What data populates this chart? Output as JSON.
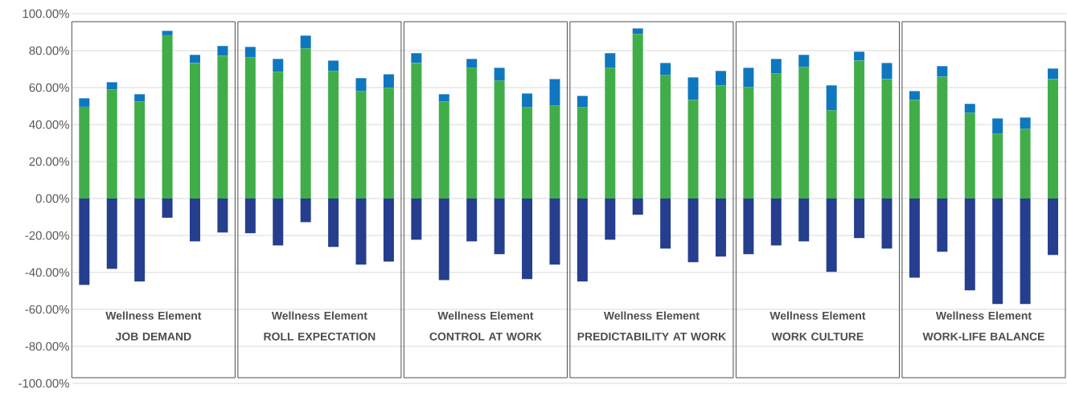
{
  "chart_data": {
    "type": "bar",
    "stacked": true,
    "grid": "y",
    "categories": [
      null,
      null,
      null,
      null,
      null,
      null,
      null,
      null,
      null,
      null,
      null,
      null,
      null,
      null,
      null,
      null,
      null,
      null,
      null,
      null,
      null,
      null,
      null,
      null,
      null,
      null,
      null,
      null,
      null,
      null,
      null,
      null,
      null,
      null,
      null,
      null
    ],
    "series": [
      {
        "color": "#41ad49",
        "values": [
          49.6,
          59.0,
          52.5,
          88.3,
          73.3,
          77.2,
          76.4,
          68.6,
          81.2,
          69.0,
          58.1,
          59.9,
          73.3,
          52.5,
          70.7,
          63.8,
          49.4,
          50.3,
          49.4,
          70.7,
          89.0,
          66.8,
          53.3,
          61.2,
          60.3,
          67.7,
          71.2,
          47.7,
          74.6,
          64.6,
          53.3,
          65.9,
          46.4,
          35.1,
          37.7,
          64.6
        ]
      },
      {
        "color": "#0f77bf",
        "values": [
          4.6,
          3.9,
          3.9,
          2.4,
          4.4,
          5.3,
          5.6,
          6.9,
          6.9,
          5.6,
          7.0,
          7.3,
          5.3,
          3.9,
          4.8,
          6.9,
          7.4,
          14.3,
          6.1,
          7.9,
          3.0,
          6.5,
          12.2,
          7.8,
          10.4,
          7.8,
          6.5,
          13.5,
          4.8,
          8.7,
          4.8,
          5.7,
          4.8,
          8.2,
          6.1,
          5.7
        ]
      },
      {
        "color": "#253e8e",
        "values": [
          -46.7,
          -38.0,
          -44.9,
          -10.4,
          -23.2,
          -18.4,
          -18.8,
          -25.4,
          -12.8,
          -26.2,
          -35.8,
          -34.1,
          -22.3,
          -44.1,
          -23.2,
          -30.1,
          -43.6,
          -35.8,
          -44.9,
          -22.3,
          -8.8,
          -27.1,
          -34.5,
          -31.4,
          -30.1,
          -25.4,
          -23.2,
          -39.7,
          -21.4,
          -27.1,
          -42.8,
          -28.8,
          -49.7,
          -57.1,
          -57.1,
          -30.6
        ]
      }
    ],
    "ylim": [
      -100,
      100
    ],
    "yticks": [
      {
        "value": -100,
        "label": "-100.00%"
      },
      {
        "value": -80,
        "label": "-80.00%"
      },
      {
        "value": -60,
        "label": "-60.00%"
      },
      {
        "value": -40,
        "label": "-40.00%"
      },
      {
        "value": -20,
        "label": "-20.00%"
      },
      {
        "value": 0,
        "label": "0.00%"
      },
      {
        "value": 20,
        "label": "20.00%"
      },
      {
        "value": 40,
        "label": "40.00%"
      },
      {
        "value": 60,
        "label": "60.00%"
      },
      {
        "value": 80,
        "label": "80.00%"
      },
      {
        "value": 100,
        "label": "100.00%"
      }
    ],
    "annotations": [
      "Wellness Element",
      "JOB DEMAND",
      "Wellness Element",
      "ROLL EXPECTATION",
      "Wellness Element",
      "CONTROL AT WORK",
      "Wellness Element",
      "PREDICTABILITY AT WORK",
      "Wellness Element",
      "WORK CULTURE",
      "Wellness Element",
      "WORK-LIFE BALANCE"
    ]
  }
}
